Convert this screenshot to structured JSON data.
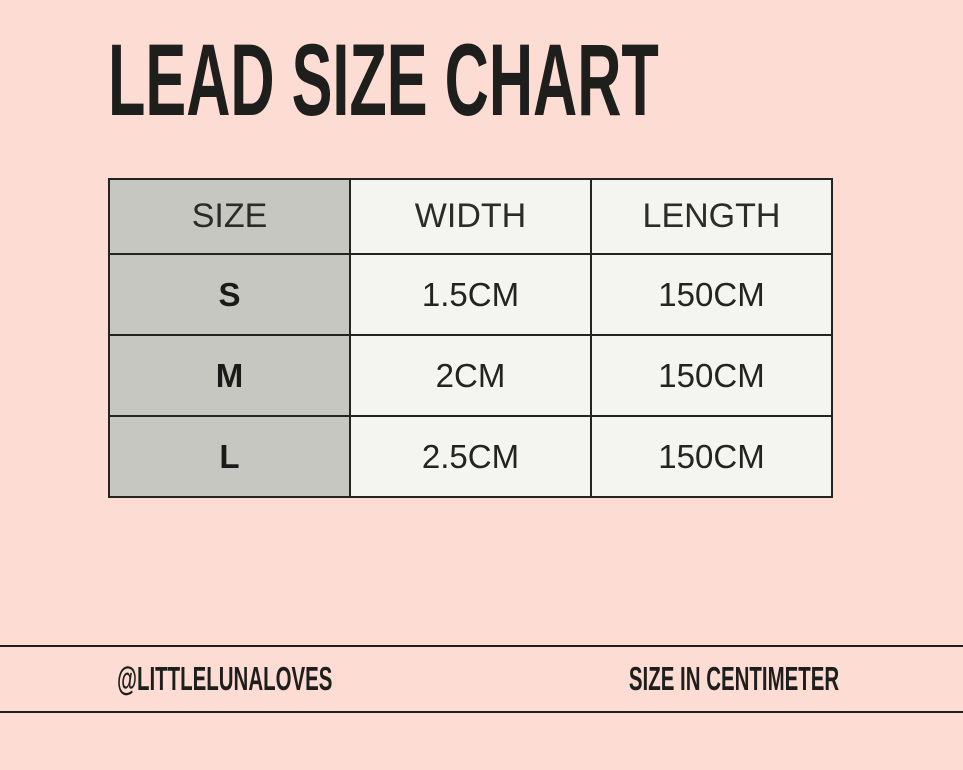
{
  "header": {
    "title": "LEAD SIZE CHART"
  },
  "chart_data": {
    "type": "table",
    "title": "LEAD SIZE CHART",
    "columns": [
      "SIZE",
      "WIDTH",
      "LENGTH"
    ],
    "rows": [
      [
        "S",
        "1.5CM",
        "150CM"
      ],
      [
        "M",
        "2CM",
        "150CM"
      ],
      [
        "L",
        "2.5CM",
        "150CM"
      ]
    ]
  },
  "footer": {
    "handle": "@LITTLELUNALOVES",
    "note": "SIZE IN CENTIMETER"
  },
  "colors": {
    "background": "#fcdcd3",
    "header_column_cell": "#c6c7c0",
    "value_cell": "#f4f4f1",
    "ink": "#1e1e1c",
    "table_border": "#232321"
  }
}
